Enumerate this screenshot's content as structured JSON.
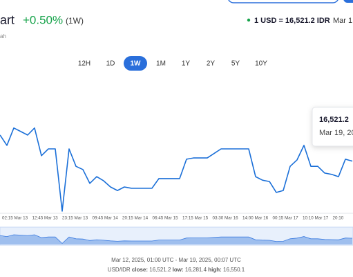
{
  "header": {
    "title": "art",
    "change": "+0.50%",
    "period": "(1W)",
    "subtitle": "ah",
    "rate": "1 USD = 16,521.2 IDR",
    "date": "Mar 1"
  },
  "tabs": [
    "12H",
    "1D",
    "1W",
    "1M",
    "1Y",
    "2Y",
    "5Y",
    "10Y"
  ],
  "active_tab": "1W",
  "tooltip": {
    "value": "16,521.2",
    "date": "Mar 19, 20"
  },
  "chart_data": {
    "type": "line",
    "color": "#1a6fd8",
    "ylim": [
      16270,
      16560
    ],
    "values": [
      16517,
      16485,
      16539,
      16528,
      16517,
      16539,
      16453,
      16474,
      16474,
      16281,
      16474,
      16420,
      16410,
      16367,
      16388,
      16375,
      16356,
      16345,
      16356,
      16352,
      16352,
      16352,
      16352,
      16382,
      16382,
      16382,
      16382,
      16442,
      16446,
      16446,
      16446,
      16460,
      16474,
      16474,
      16474,
      16474,
      16474,
      16388,
      16377,
      16373,
      16339,
      16345,
      16420,
      16440,
      16485,
      16420,
      16420,
      16399,
      16395,
      16388,
      16442,
      16436
    ],
    "x_tick_labels": [
      "02:15 Mar 13",
      "12:45 Mar 13",
      "23:15 Mar 13",
      "09:45 Mar 14",
      "20:15 Mar 14",
      "06:45 Mar 15",
      "17:15 Mar 15",
      "03:30 Mar 16",
      "14:00 Mar 16",
      "00:15 Mar 17",
      "10:10 Mar 17",
      "20:10"
    ]
  },
  "footer": {
    "range": "Mar 12, 2025, 01:00 UTC - Mar 19, 2025, 00:07 UTC",
    "pair": "USD/IDR",
    "close_label": "close:",
    "close": "16,521.2",
    "low_label": "low:",
    "low": "16,281.4",
    "high_label": "high:",
    "high": "16,550.1"
  }
}
